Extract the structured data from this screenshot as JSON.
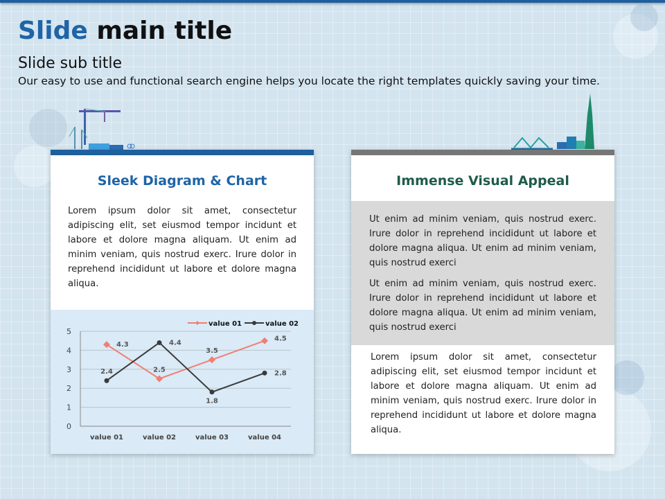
{
  "title": {
    "highlight": "Slide",
    "rest": " main title"
  },
  "subtitle": "Slide sub title",
  "description": "Our easy to use and functional search engine helps you locate the right templates quickly saving your time.",
  "colors": {
    "accent": "#1f64a6",
    "left_bar": "#1f5f9e",
    "right_bar": "#767676",
    "right_heading": "#1e5b4a",
    "series1": "#f07f72",
    "series2": "#3a3a3a"
  },
  "left_card": {
    "heading": "Sleek Diagram & Chart",
    "text": "Lorem ipsum dolor sit amet, consectetur adipiscing elit, set eiusmod tempor incidunt et labore et dolore magna aliquam. Ut enim ad minim veniam, quis nostrud exerc. Irure dolor in reprehend incididunt ut labore et dolore magna aliqua."
  },
  "right_card": {
    "heading": "Immense Visual Appeal",
    "gray_text_1": "Ut enim ad minim veniam, quis nostrud exerc. Irure dolor in reprehend incididunt ut labore et dolore magna aliqua. Ut enim ad minim veniam, quis nostrud exerci",
    "gray_text_2": "Ut enim ad minim veniam, quis nostrud exerc. Irure dolor in reprehend incididunt ut labore et dolore magna aliqua. Ut enim ad minim veniam, quis nostrud exerci",
    "text": "Lorem ipsum dolor sit amet, consectetur adipiscing elit, set eiusmod tempor incidunt et labore et dolore magna aliquam. Ut enim ad minim veniam, quis nostrud exerc. Irure dolor in reprehend incididunt ut labore et dolore magna aliqua."
  },
  "icons": [
    "construction-crane-icon",
    "wind-turbine-icon",
    "city-skyline-icon",
    "bridge-icon"
  ],
  "chart_data": {
    "type": "line",
    "categories": [
      "value 01",
      "value 02",
      "value 03",
      "value 04"
    ],
    "series": [
      {
        "name": "value 01",
        "values": [
          4.3,
          2.5,
          3.5,
          4.5
        ],
        "marker": "diamond"
      },
      {
        "name": "value 02",
        "values": [
          2.4,
          4.4,
          1.8,
          2.8
        ],
        "marker": "circle"
      }
    ],
    "ylim": [
      0,
      5
    ],
    "yticks": [
      "0",
      "1",
      "2",
      "3",
      "4",
      "5"
    ],
    "grid": true,
    "legend": "top-right",
    "data_labels": true
  }
}
